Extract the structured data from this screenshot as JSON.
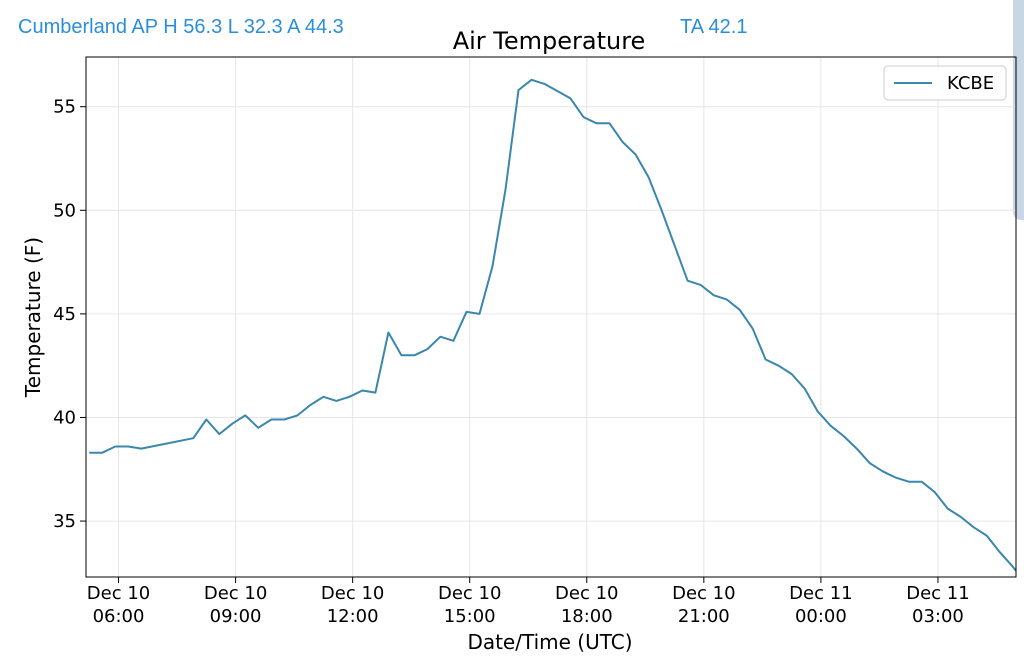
{
  "header": {
    "station_summary": "Cumberland AP H 56.3 L 32.3 A 44.3",
    "ta_value": "TA 42.1"
  },
  "colors": {
    "header_text": "#2a8fd8",
    "series_line": "#3a87ad",
    "grid": "#e6e6e6"
  },
  "chart_data": {
    "type": "line",
    "title": "Air Temperature",
    "xlabel": "Date/Time (UTC)",
    "ylabel": "Temperature (F)",
    "xlim": [
      "2023-12-10 05:10",
      "2023-12-11 05:00"
    ],
    "ylim": [
      32.3,
      57.4
    ],
    "yticks": [
      35,
      40,
      45,
      50,
      55
    ],
    "xticks": [
      {
        "t": "2023-12-10 06:00",
        "line1": "Dec 10",
        "line2": "06:00"
      },
      {
        "t": "2023-12-10 09:00",
        "line1": "Dec 10",
        "line2": "09:00"
      },
      {
        "t": "2023-12-10 12:00",
        "line1": "Dec 10",
        "line2": "12:00"
      },
      {
        "t": "2023-12-10 15:00",
        "line1": "Dec 10",
        "line2": "15:00"
      },
      {
        "t": "2023-12-10 18:00",
        "line1": "Dec 10",
        "line2": "18:00"
      },
      {
        "t": "2023-12-10 21:00",
        "line1": "Dec 10",
        "line2": "21:00"
      },
      {
        "t": "2023-12-11 00:00",
        "line1": "Dec 11",
        "line2": "00:00"
      },
      {
        "t": "2023-12-11 03:00",
        "line1": "Dec 11",
        "line2": "03:00"
      }
    ],
    "grid": true,
    "legend_position": "top-right",
    "series": [
      {
        "name": "KCBE",
        "points": [
          [
            "2023-12-10 05:15",
            38.3
          ],
          [
            "2023-12-10 05:35",
            38.3
          ],
          [
            "2023-12-10 05:55",
            38.6
          ],
          [
            "2023-12-10 06:15",
            38.6
          ],
          [
            "2023-12-10 06:35",
            38.5
          ],
          [
            "2023-12-10 07:55",
            39.0
          ],
          [
            "2023-12-10 08:15",
            39.9
          ],
          [
            "2023-12-10 08:35",
            39.2
          ],
          [
            "2023-12-10 08:55",
            39.7
          ],
          [
            "2023-12-10 09:15",
            40.1
          ],
          [
            "2023-12-10 09:35",
            39.5
          ],
          [
            "2023-12-10 09:55",
            39.9
          ],
          [
            "2023-12-10 10:15",
            39.9
          ],
          [
            "2023-12-10 10:35",
            40.1
          ],
          [
            "2023-12-10 10:55",
            40.6
          ],
          [
            "2023-12-10 11:15",
            41.0
          ],
          [
            "2023-12-10 11:35",
            40.8
          ],
          [
            "2023-12-10 11:55",
            41.0
          ],
          [
            "2023-12-10 12:15",
            41.3
          ],
          [
            "2023-12-10 12:35",
            41.2
          ],
          [
            "2023-12-10 12:55",
            44.1
          ],
          [
            "2023-12-10 13:15",
            43.0
          ],
          [
            "2023-12-10 13:35",
            43.0
          ],
          [
            "2023-12-10 13:55",
            43.3
          ],
          [
            "2023-12-10 14:15",
            43.9
          ],
          [
            "2023-12-10 14:35",
            43.7
          ],
          [
            "2023-12-10 14:55",
            45.1
          ],
          [
            "2023-12-10 15:15",
            45.0
          ],
          [
            "2023-12-10 15:35",
            47.3
          ],
          [
            "2023-12-10 15:55",
            51.0
          ],
          [
            "2023-12-10 16:15",
            55.8
          ],
          [
            "2023-12-10 16:35",
            56.3
          ],
          [
            "2023-12-10 16:55",
            56.1
          ],
          [
            "2023-12-10 17:35",
            55.4
          ],
          [
            "2023-12-10 17:55",
            54.5
          ],
          [
            "2023-12-10 18:15",
            54.2
          ],
          [
            "2023-12-10 18:35",
            54.2
          ],
          [
            "2023-12-10 18:55",
            53.3
          ],
          [
            "2023-12-10 19:15",
            52.7
          ],
          [
            "2023-12-10 19:35",
            51.6
          ],
          [
            "2023-12-10 19:55",
            50.0
          ],
          [
            "2023-12-10 20:15",
            48.3
          ],
          [
            "2023-12-10 20:35",
            46.6
          ],
          [
            "2023-12-10 20:55",
            46.4
          ],
          [
            "2023-12-10 21:15",
            45.9
          ],
          [
            "2023-12-10 21:35",
            45.7
          ],
          [
            "2023-12-10 21:55",
            45.2
          ],
          [
            "2023-12-10 22:15",
            44.3
          ],
          [
            "2023-12-10 22:35",
            42.8
          ],
          [
            "2023-12-10 22:55",
            42.5
          ],
          [
            "2023-12-10 23:15",
            42.1
          ],
          [
            "2023-12-10 23:35",
            41.4
          ],
          [
            "2023-12-10 23:55",
            40.3
          ],
          [
            "2023-12-11 00:15",
            39.6
          ],
          [
            "2023-12-11 00:35",
            39.1
          ],
          [
            "2023-12-11 00:55",
            38.5
          ],
          [
            "2023-12-11 01:15",
            37.8
          ],
          [
            "2023-12-11 01:35",
            37.4
          ],
          [
            "2023-12-11 01:55",
            37.1
          ],
          [
            "2023-12-11 02:15",
            36.9
          ],
          [
            "2023-12-11 02:35",
            36.9
          ],
          [
            "2023-12-11 02:55",
            36.4
          ],
          [
            "2023-12-11 03:15",
            35.6
          ],
          [
            "2023-12-11 03:35",
            35.2
          ],
          [
            "2023-12-11 03:55",
            34.7
          ],
          [
            "2023-12-11 04:15",
            34.3
          ],
          [
            "2023-12-11 04:35",
            33.5
          ],
          [
            "2023-12-11 04:55",
            32.8
          ],
          [
            "2023-12-11 05:00",
            32.6
          ]
        ]
      }
    ]
  }
}
